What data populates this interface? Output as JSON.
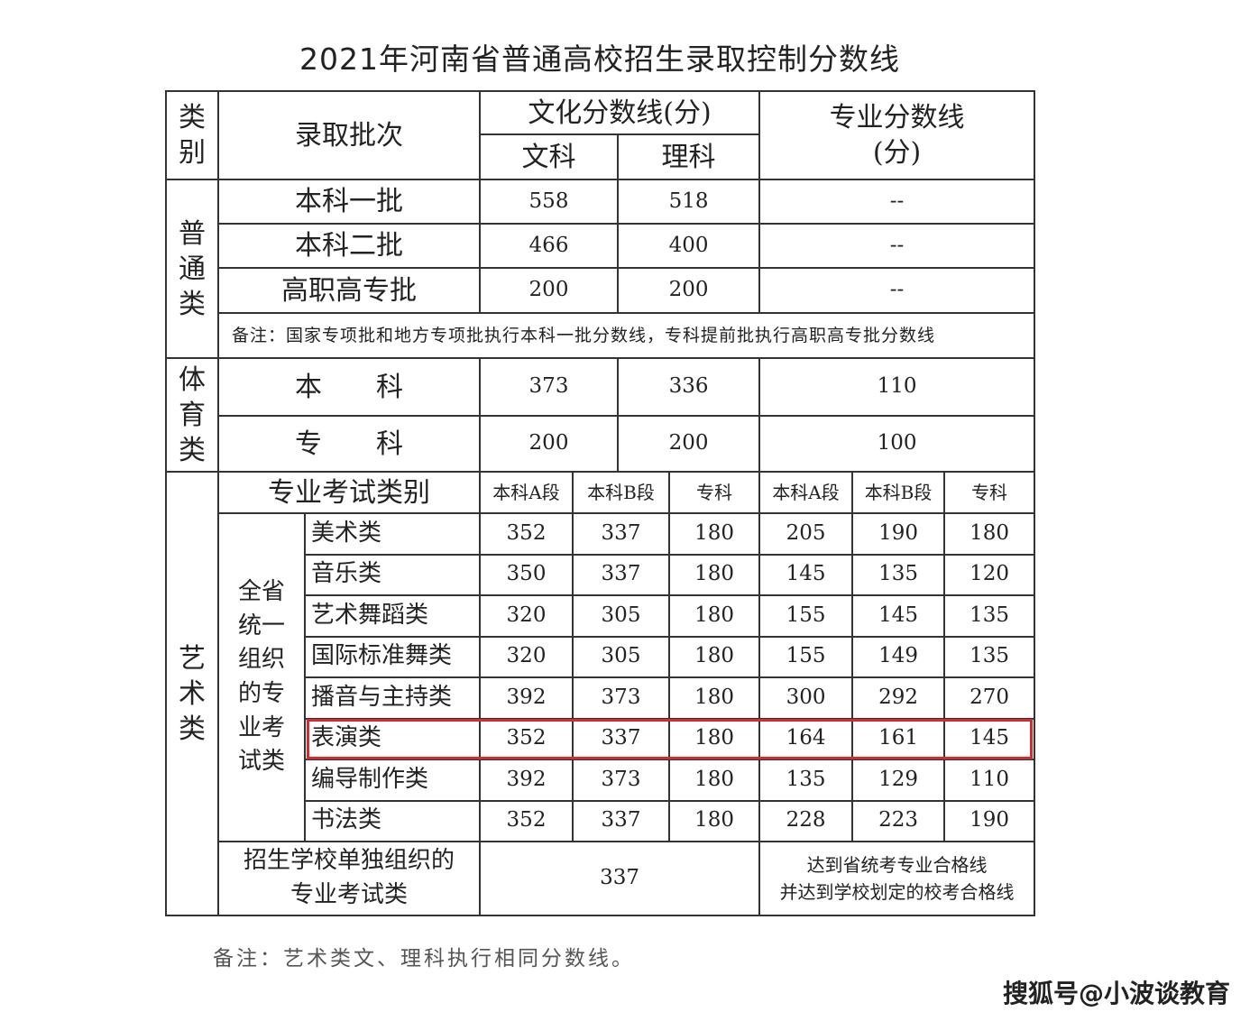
{
  "title": "2021年河南省普通高校招生录取控制分数线",
  "header": {
    "category": "类别",
    "batch": "录取批次",
    "culture": "文化分数线(分)",
    "wenke": "文科",
    "like": "理科",
    "major": "专业分数线(分)"
  },
  "general": {
    "label": "普通类",
    "rows": [
      {
        "name": "本科一批",
        "wenke": "558",
        "like": "518",
        "major": "--"
      },
      {
        "name": "本科二批",
        "wenke": "466",
        "like": "400",
        "major": "--"
      },
      {
        "name": "高职高专批",
        "wenke": "200",
        "like": "200",
        "major": "--"
      }
    ],
    "note": "备注：国家专项批和地方专项批执行本科一批分数线，专科提前批执行高职高专批分数线"
  },
  "sports": {
    "label": "体育类",
    "rows": [
      {
        "name": "本　　科",
        "wenke": "373",
        "like": "336",
        "major": "110"
      },
      {
        "name": "专　　科",
        "wenke": "200",
        "like": "200",
        "major": "100"
      }
    ]
  },
  "art": {
    "label": "艺术类",
    "header": {
      "type": "专业考试类别",
      "c1": "本科A段",
      "c2": "本科B段",
      "c3": "专科",
      "m1": "本科A段",
      "m2": "本科B段",
      "m3": "专科"
    },
    "group": "全省统一组织的专业考试类",
    "rows": [
      {
        "name": "美术类",
        "v": [
          "352",
          "337",
          "180",
          "205",
          "190",
          "180"
        ]
      },
      {
        "name": "音乐类",
        "v": [
          "350",
          "337",
          "180",
          "145",
          "135",
          "120"
        ]
      },
      {
        "name": "艺术舞蹈类",
        "v": [
          "320",
          "305",
          "180",
          "155",
          "145",
          "135"
        ]
      },
      {
        "name": "国际标准舞类",
        "v": [
          "320",
          "305",
          "180",
          "155",
          "149",
          "135"
        ]
      },
      {
        "name": "播音与主持类",
        "v": [
          "392",
          "373",
          "180",
          "300",
          "292",
          "270"
        ]
      },
      {
        "name": "表演类",
        "v": [
          "352",
          "337",
          "180",
          "164",
          "161",
          "145"
        ]
      },
      {
        "name": "编导制作类",
        "v": [
          "392",
          "373",
          "180",
          "135",
          "129",
          "110"
        ]
      },
      {
        "name": "书法类",
        "v": [
          "352",
          "337",
          "180",
          "228",
          "223",
          "190"
        ]
      }
    ],
    "school": {
      "name": "招生学校单独组织的专业考试类",
      "culture": "337",
      "major_line1": "达到省统考专业合格线",
      "major_line2": "并达到学校划定的校考合格线"
    }
  },
  "footnote": "备注：艺术类文、理科执行相同分数线。",
  "watermark": "搜狐号@小波谈教育",
  "highlight_color": "#d8292f"
}
